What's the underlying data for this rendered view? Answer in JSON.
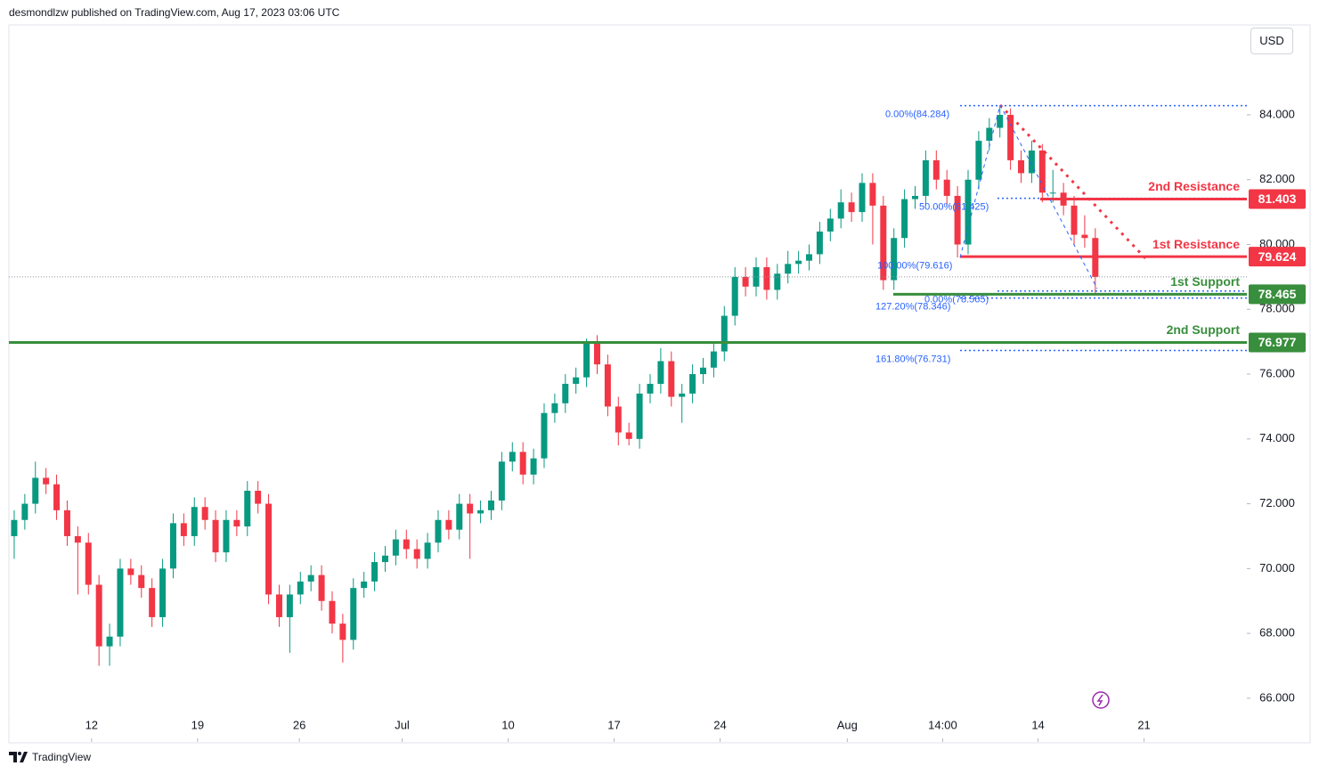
{
  "header": {
    "text": "desmondlzw published on TradingView.com, Aug 17, 2023 03:06 UTC"
  },
  "currency_button": "USD",
  "footer": {
    "brand": "TradingView"
  },
  "chart_data": {
    "type": "candlestick",
    "up_color": "#089981",
    "down_color": "#f23645",
    "xlim": [
      -0.5,
      116.3
    ],
    "xticks": [
      {
        "value": 7.3,
        "label": "12"
      },
      {
        "value": 17.3,
        "label": "19"
      },
      {
        "value": 26.9,
        "label": "26"
      },
      {
        "value": 36.6,
        "label": "Jul"
      },
      {
        "value": 46.6,
        "label": "10"
      },
      {
        "value": 56.6,
        "label": "17"
      },
      {
        "value": 66.6,
        "label": "24"
      },
      {
        "value": 78.6,
        "label": "Aug"
      },
      {
        "value": 87.6,
        "label": "14:00"
      },
      {
        "value": 96.6,
        "label": "14"
      },
      {
        "value": 106.6,
        "label": "21"
      }
    ],
    "ylim": [
      64.65,
      86.72
    ],
    "yticks": [
      {
        "value": 66,
        "label": "66.000"
      },
      {
        "value": 68,
        "label": "68.000"
      },
      {
        "value": 70,
        "label": "70.000"
      },
      {
        "value": 72,
        "label": "72.000"
      },
      {
        "value": 74,
        "label": "74.000"
      },
      {
        "value": 76,
        "label": "76.000"
      },
      {
        "value": 78,
        "label": "78.000"
      },
      {
        "value": 80,
        "label": "80.000"
      },
      {
        "value": 82,
        "label": "82.000"
      },
      {
        "value": 84,
        "label": "84.000"
      }
    ],
    "open": [
      71.0,
      71.5,
      72.0,
      72.8,
      72.6,
      71.8,
      71.0,
      70.8,
      69.5,
      67.6,
      67.9,
      70.0,
      69.8,
      69.4,
      68.5,
      70.0,
      71.4,
      71.0,
      71.9,
      71.5,
      70.5,
      71.5,
      71.3,
      72.4,
      72.0,
      69.2,
      68.5,
      69.2,
      69.6,
      69.8,
      69.0,
      68.3,
      67.8,
      69.4,
      69.6,
      70.2,
      70.4,
      70.9,
      70.6,
      70.3,
      70.8,
      71.5,
      71.2,
      72.0,
      71.7,
      71.8,
      72.1,
      73.3,
      73.6,
      72.9,
      73.4,
      74.8,
      75.1,
      75.7,
      75.9,
      77.0,
      76.3,
      75.0,
      74.2,
      74.0,
      75.4,
      75.7,
      76.4,
      75.3,
      75.4,
      76.0,
      76.2,
      76.7,
      77.8,
      79.0,
      78.7,
      79.3,
      78.6,
      79.1,
      79.4,
      79.5,
      79.7,
      80.4,
      80.8,
      81.3,
      81.0,
      81.9,
      81.2,
      78.9,
      80.2,
      81.4,
      81.5,
      82.6,
      82.0,
      81.5,
      80.0,
      82.0,
      83.2,
      83.6,
      84.0,
      82.6,
      82.2,
      82.9,
      81.6,
      81.6,
      81.2,
      80.3,
      80.2
    ],
    "high": [
      71.8,
      72.3,
      73.3,
      73.1,
      72.9,
      72.1,
      71.3,
      71.1,
      69.8,
      68.3,
      70.3,
      70.3,
      70.1,
      69.7,
      70.3,
      71.7,
      71.7,
      72.2,
      72.2,
      71.8,
      71.8,
      71.8,
      72.7,
      72.7,
      72.3,
      69.5,
      69.5,
      69.9,
      70.1,
      70.1,
      69.3,
      68.6,
      69.7,
      69.9,
      70.5,
      70.7,
      71.2,
      71.2,
      70.9,
      71.1,
      71.8,
      71.8,
      72.3,
      72.3,
      72.1,
      72.4,
      73.6,
      73.9,
      73.9,
      73.7,
      75.1,
      75.4,
      76.0,
      76.2,
      77.1,
      77.2,
      76.6,
      75.3,
      74.5,
      75.7,
      76.0,
      76.8,
      76.7,
      75.7,
      76.3,
      76.5,
      77.0,
      78.1,
      79.3,
      79.3,
      79.6,
      79.6,
      79.4,
      79.8,
      79.8,
      80.0,
      80.7,
      81.1,
      81.7,
      81.6,
      82.2,
      82.2,
      81.5,
      80.5,
      81.7,
      81.8,
      82.9,
      82.9,
      82.3,
      81.8,
      82.3,
      83.5,
      83.9,
      84.28,
      84.2,
      82.9,
      83.2,
      83.1,
      82.3,
      81.9,
      81.5,
      80.9,
      80.5
    ],
    "low": [
      70.3,
      71.2,
      71.7,
      72.3,
      71.5,
      70.7,
      69.2,
      69.2,
      67.0,
      67.0,
      67.6,
      69.5,
      69.1,
      68.2,
      68.2,
      69.7,
      70.7,
      70.7,
      71.2,
      70.2,
      70.2,
      71.0,
      71.0,
      71.7,
      68.9,
      68.2,
      67.4,
      68.9,
      69.3,
      68.7,
      68.0,
      67.1,
      67.5,
      69.1,
      69.3,
      69.9,
      70.1,
      70.3,
      70.0,
      70.0,
      70.5,
      70.9,
      70.9,
      70.3,
      71.4,
      71.5,
      71.8,
      73.0,
      72.6,
      72.6,
      73.1,
      74.5,
      74.8,
      75.4,
      75.6,
      76.0,
      74.7,
      73.8,
      73.8,
      73.7,
      75.1,
      75.4,
      75.0,
      74.5,
      75.1,
      75.7,
      75.9,
      76.4,
      77.5,
      78.4,
      78.4,
      78.3,
      78.3,
      78.8,
      79.1,
      79.2,
      79.4,
      80.1,
      80.5,
      80.7,
      80.7,
      80.0,
      78.6,
      78.6,
      79.9,
      81.1,
      81.2,
      81.7,
      81.2,
      79.6,
      79.7,
      81.7,
      82.9,
      83.3,
      82.3,
      81.9,
      81.9,
      81.3,
      81.3,
      80.9,
      80.0,
      79.9,
      78.5
    ],
    "close": [
      71.5,
      72.0,
      72.8,
      72.6,
      71.8,
      71.0,
      70.8,
      69.5,
      67.6,
      67.9,
      70.0,
      69.8,
      69.4,
      68.5,
      70.0,
      71.4,
      71.0,
      71.9,
      71.5,
      70.5,
      71.5,
      71.3,
      72.4,
      72.0,
      69.2,
      68.5,
      69.2,
      69.6,
      69.8,
      69.0,
      68.3,
      67.8,
      69.4,
      69.6,
      70.2,
      70.4,
      70.9,
      70.6,
      70.3,
      70.8,
      71.5,
      71.2,
      72.0,
      71.7,
      71.8,
      72.1,
      73.3,
      73.6,
      72.9,
      73.4,
      74.8,
      75.1,
      75.7,
      75.9,
      77.0,
      76.3,
      75.0,
      74.2,
      74.0,
      75.4,
      75.7,
      76.4,
      75.3,
      75.4,
      76.0,
      76.2,
      76.7,
      77.8,
      79.0,
      78.7,
      79.3,
      78.6,
      79.1,
      79.4,
      79.5,
      79.7,
      80.4,
      80.8,
      81.3,
      81.0,
      81.9,
      81.2,
      78.9,
      80.2,
      81.4,
      81.5,
      82.6,
      82.0,
      81.5,
      80.0,
      82.0,
      83.2,
      83.6,
      84.0,
      82.6,
      82.2,
      82.9,
      81.6,
      81.6,
      81.2,
      80.3,
      80.2,
      79.0
    ],
    "levels": [
      {
        "name": "2nd Resistance",
        "value": 81.403,
        "color": "#f23645"
      },
      {
        "name": "1st Resistance",
        "value": 79.624,
        "color": "#f23645"
      },
      {
        "name": "1st Support",
        "value": 78.465,
        "color": "#388e3c"
      },
      {
        "name": "2nd Support",
        "value": 76.977,
        "color": "#388e3c"
      }
    ],
    "fib_labels": [
      {
        "label": "0.00%(84.284)",
        "value": 84.284
      },
      {
        "label": "50.00%(81.425)",
        "value": 81.425
      },
      {
        "label": "100.00%(79.616)",
        "value": 79.616
      },
      {
        "label": "0.00%(78.565)",
        "value": 78.565
      },
      {
        "label": "127.20%(78.346)",
        "value": 78.346
      },
      {
        "label": "161.80%(76.731)",
        "value": 76.731
      }
    ]
  }
}
